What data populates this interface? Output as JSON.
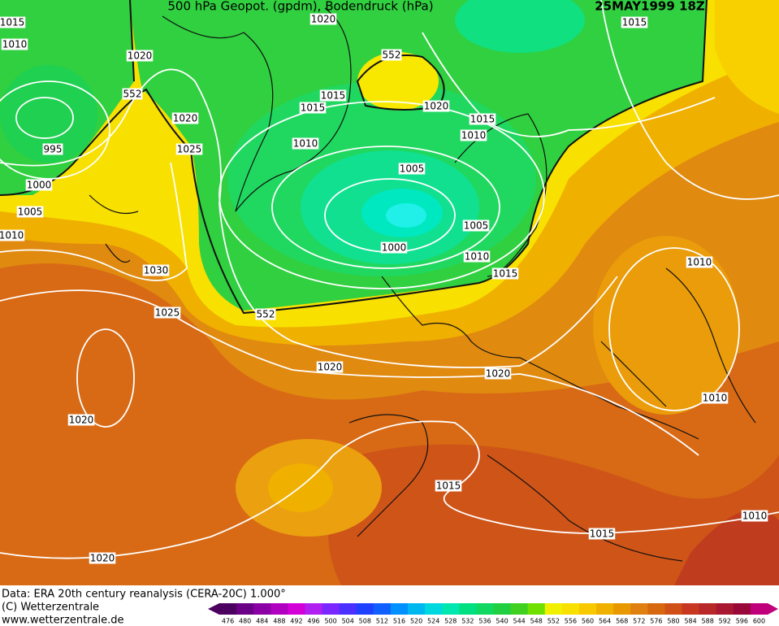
{
  "header": {
    "title": "500 hPa Geopot. (gpdm), Bodendruck (hPa)",
    "date": "25MAY1999 18Z"
  },
  "map": {
    "contour_labels": [
      1015,
      1010,
      1020,
      552,
      1020,
      995,
      1025,
      1000,
      1005,
      1010,
      1030,
      1025,
      552,
      1020,
      552,
      1020,
      1015,
      1015,
      1010,
      1005,
      1000,
      1015,
      1010,
      1005,
      1010,
      1015,
      1020,
      1020,
      1020,
      1015,
      1010,
      1010,
      1015,
      1015,
      1010,
      1020
    ]
  },
  "footer": {
    "source": "Data: ERA 20th century reanalysis (CERA-20C) 1.000°",
    "copyright": "(C) Wetterzentrale",
    "url": "www.wetterzentrale.de"
  },
  "colorbar": {
    "ticks": [
      476,
      480,
      484,
      488,
      492,
      496,
      500,
      504,
      508,
      512,
      516,
      520,
      524,
      528,
      532,
      536,
      540,
      544,
      548,
      552,
      556,
      560,
      564,
      568,
      572,
      576,
      580,
      584,
      588,
      592,
      596,
      600
    ],
    "colors": [
      "#4b0060",
      "#6a0085",
      "#8a00a5",
      "#b000c0",
      "#d400d8",
      "#b020f0",
      "#7a28ff",
      "#4b30ff",
      "#2040ff",
      "#1060ff",
      "#0090ff",
      "#00b8f0",
      "#00d8e0",
      "#00e8b0",
      "#00e080",
      "#10d860",
      "#20d040",
      "#40d020",
      "#70e000",
      "#f0f000",
      "#f8e000",
      "#f8c800",
      "#f0b000",
      "#e89800",
      "#e08010",
      "#d86810",
      "#d05018",
      "#c83820",
      "#b82828",
      "#a81830",
      "#980838",
      "#c0007a"
    ]
  }
}
